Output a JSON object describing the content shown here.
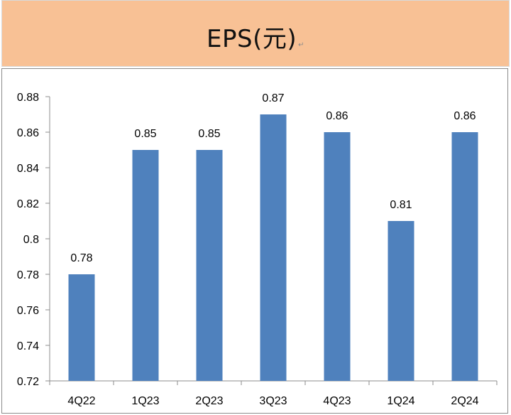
{
  "header": {
    "title": "EPS(元)",
    "paragraph_mark": "↵"
  },
  "colors": {
    "header_background": "#f8c195",
    "bar": "#4f81bd",
    "axis": "#8c8c8c"
  },
  "chart_data": {
    "type": "bar",
    "title": "EPS(元)",
    "xlabel": "",
    "ylabel": "",
    "categories": [
      "4Q22",
      "1Q23",
      "2Q23",
      "3Q23",
      "4Q23",
      "1Q24",
      "2Q24"
    ],
    "values": [
      0.78,
      0.85,
      0.85,
      0.87,
      0.86,
      0.81,
      0.86
    ],
    "data_labels": [
      "0.78",
      "0.85",
      "0.85",
      "0.87",
      "0.86",
      "0.81",
      "0.86"
    ],
    "ylim": [
      0.72,
      0.88
    ],
    "yticks": [
      0.72,
      0.74,
      0.76,
      0.78,
      0.8,
      0.82,
      0.84,
      0.86,
      0.88
    ],
    "ytick_labels": [
      "0.72",
      "0.74",
      "0.76",
      "0.78",
      "0.8",
      "0.82",
      "0.84",
      "0.86",
      "0.88"
    ],
    "grid": false,
    "legend": "none"
  }
}
